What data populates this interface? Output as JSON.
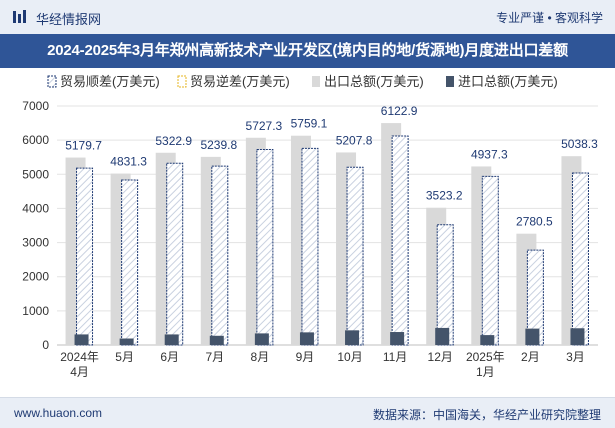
{
  "header": {
    "brand": "华经情报网",
    "slogan": "专业严谨 • 客观科学"
  },
  "title": "2024-2025年3月年郑州高新技术产业开发区(境内目的地/货源地)月度进出口差额",
  "footer": {
    "site": "www.huaon.com",
    "source": "数据来源：中国海关，华经产业研究院整理"
  },
  "colors": {
    "header_bg": "#e9eef6",
    "title_bg": "#2f5597",
    "export_bar": "#d9d9d9",
    "import_bar": "#44546a",
    "surplus_hatch": "#1f3a73"
  },
  "chart_data": {
    "type": "bar",
    "categories": [
      "2024年\n4月",
      "5月",
      "6月",
      "7月",
      "8月",
      "9月",
      "10月",
      "11月",
      "12月",
      "2025年\n1月",
      "2月",
      "3月"
    ],
    "series": [
      {
        "name": "贸易顺差(万美元)",
        "values": [
          5179.7,
          4831.3,
          5322.9,
          5239.8,
          5727.3,
          5759.1,
          5207.8,
          6122.9,
          3523.2,
          4937.3,
          2780.5,
          5038.3
        ]
      },
      {
        "name": "贸易逆差(万美元)",
        "values": [
          0,
          0,
          0,
          0,
          0,
          0,
          0,
          0,
          0,
          0,
          0,
          0
        ]
      },
      {
        "name": "出口总额(万美元)",
        "values": [
          5490,
          5020,
          5630,
          5510,
          6070,
          6130,
          5640,
          6500,
          4020,
          5230,
          3260,
          5530
        ]
      },
      {
        "name": "进口总额(万美元)",
        "values": [
          310,
          190,
          310,
          270,
          340,
          370,
          430,
          380,
          500,
          290,
          480,
          490
        ]
      }
    ],
    "data_labels": [
      "5179.7",
      "4831.3",
      "5322.9",
      "5239.8",
      "5727.3",
      "5759.1",
      "5207.8",
      "6122.9",
      "3523.2",
      "4937.3",
      "2780.5",
      "5038.3"
    ],
    "ylim": [
      0,
      7000
    ],
    "yticks": [
      0,
      1000,
      2000,
      3000,
      4000,
      5000,
      6000,
      7000
    ],
    "grid": true,
    "legend_position": "top"
  }
}
